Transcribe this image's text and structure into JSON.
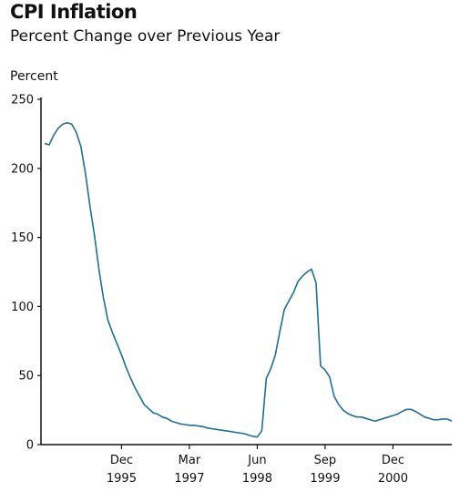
{
  "chart_data": {
    "type": "line",
    "title": "CPI Inflation",
    "subtitle": "Percent Change over Previous Year",
    "ylabel": "Percent",
    "xlabel": "",
    "ylim": [
      0,
      250
    ],
    "yticks": [
      0,
      50,
      100,
      150,
      200,
      250
    ],
    "xlim": [
      "1994-07",
      "2002-01"
    ],
    "xticks": [
      {
        "date": "1995-12",
        "month": "Dec",
        "year": "1995"
      },
      {
        "date": "1997-03",
        "month": "Mar",
        "year": "1997"
      },
      {
        "date": "1998-06",
        "month": "Jun",
        "year": "1998"
      },
      {
        "date": "1999-09",
        "month": "Sep",
        "year": "1999"
      },
      {
        "date": "2000-12",
        "month": "Dec",
        "year": "2000"
      }
    ],
    "grid": false,
    "color": "#1f6f9a",
    "series": [
      {
        "points": [
          [
            "1994-07",
            218
          ],
          [
            "1994-08",
            217
          ],
          [
            "1994-09",
            224
          ],
          [
            "1994-10",
            229
          ],
          [
            "1994-11",
            232
          ],
          [
            "1994-12",
            233
          ],
          [
            "1995-01",
            232
          ],
          [
            "1995-02",
            226
          ],
          [
            "1995-03",
            216
          ],
          [
            "1995-04",
            197
          ],
          [
            "1995-05",
            173
          ],
          [
            "1995-06",
            152
          ],
          [
            "1995-07",
            127
          ],
          [
            "1995-08",
            106
          ],
          [
            "1995-09",
            90
          ],
          [
            "1995-10",
            81
          ],
          [
            "1995-11",
            73
          ],
          [
            "1995-12",
            65
          ],
          [
            "1996-01",
            56
          ],
          [
            "1996-02",
            48
          ],
          [
            "1996-03",
            41
          ],
          [
            "1996-04",
            35
          ],
          [
            "1996-05",
            29
          ],
          [
            "1996-06",
            26
          ],
          [
            "1996-07",
            23
          ],
          [
            "1996-08",
            22
          ],
          [
            "1996-09",
            20
          ],
          [
            "1996-10",
            19
          ],
          [
            "1996-11",
            17
          ],
          [
            "1996-12",
            16
          ],
          [
            "1997-01",
            15
          ],
          [
            "1997-02",
            14.5
          ],
          [
            "1997-03",
            14
          ],
          [
            "1997-04",
            14
          ],
          [
            "1997-05",
            13.5
          ],
          [
            "1997-06",
            13
          ],
          [
            "1997-07",
            12
          ],
          [
            "1997-08",
            11.5
          ],
          [
            "1997-09",
            11
          ],
          [
            "1997-10",
            10.5
          ],
          [
            "1997-11",
            10
          ],
          [
            "1997-12",
            9.5
          ],
          [
            "1998-01",
            9
          ],
          [
            "1998-02",
            8.5
          ],
          [
            "1998-03",
            8
          ],
          [
            "1998-04",
            7
          ],
          [
            "1998-05",
            6
          ],
          [
            "1998-06",
            5.5
          ],
          [
            "1998-07",
            10
          ],
          [
            "1998-08",
            48
          ],
          [
            "1998-09",
            55
          ],
          [
            "1998-10",
            65
          ],
          [
            "1998-11",
            82
          ],
          [
            "1998-12",
            98
          ],
          [
            "1999-01",
            104
          ],
          [
            "1999-02",
            110
          ],
          [
            "1999-03",
            118
          ],
          [
            "1999-04",
            122
          ],
          [
            "1999-05",
            125
          ],
          [
            "1999-06",
            127
          ],
          [
            "1999-07",
            117
          ],
          [
            "1999-08",
            57
          ],
          [
            "1999-09",
            54
          ],
          [
            "1999-10",
            49
          ],
          [
            "1999-11",
            35
          ],
          [
            "1999-12",
            29
          ],
          [
            "2000-01",
            25
          ],
          [
            "2000-02",
            22.5
          ],
          [
            "2000-03",
            21
          ],
          [
            "2000-04",
            20
          ],
          [
            "2000-05",
            20
          ],
          [
            "2000-06",
            19
          ],
          [
            "2000-07",
            18
          ],
          [
            "2000-08",
            17
          ],
          [
            "2000-09",
            18
          ],
          [
            "2000-10",
            19
          ],
          [
            "2000-11",
            20
          ],
          [
            "2000-12",
            21
          ],
          [
            "2001-01",
            22
          ],
          [
            "2001-02",
            24
          ],
          [
            "2001-03",
            25.5
          ],
          [
            "2001-04",
            25.5
          ],
          [
            "2001-05",
            24
          ],
          [
            "2001-06",
            22
          ],
          [
            "2001-07",
            20
          ],
          [
            "2001-08",
            19
          ],
          [
            "2001-09",
            18
          ],
          [
            "2001-10",
            18
          ],
          [
            "2001-11",
            18.5
          ],
          [
            "2001-12",
            18.5
          ],
          [
            "2002-01",
            17
          ]
        ]
      }
    ]
  }
}
